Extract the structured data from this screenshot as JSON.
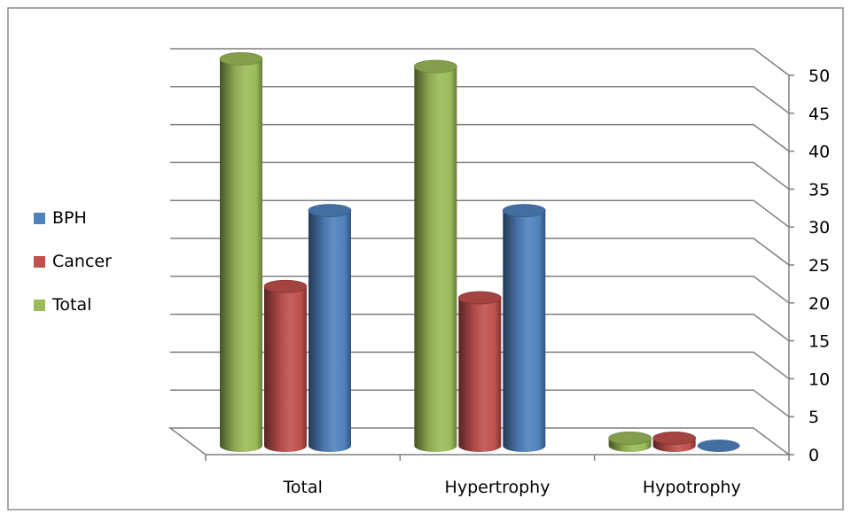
{
  "chart_data": {
    "type": "bar",
    "style": "3d-cylinder",
    "categories": [
      "Total",
      "Hypertrophy",
      "Hypotrophy"
    ],
    "series": [
      {
        "name": "Total",
        "values": [
          51,
          50,
          1
        ],
        "color": "#9bbb59"
      },
      {
        "name": "Cancer",
        "values": [
          21,
          19.5,
          1
        ],
        "color": "#c0504d"
      },
      {
        "name": "BPH",
        "values": [
          31,
          31,
          0
        ],
        "color": "#4f81bd"
      }
    ],
    "legend_order": [
      "BPH",
      "Cancer",
      "Total"
    ],
    "ylim": [
      0,
      50
    ],
    "yticks": [
      0,
      5,
      10,
      15,
      20,
      25,
      30,
      35,
      40,
      45,
      50
    ],
    "y_axis_side": "right",
    "grid": true,
    "legend_position": "left",
    "title": "",
    "xlabel": "",
    "ylabel": ""
  }
}
